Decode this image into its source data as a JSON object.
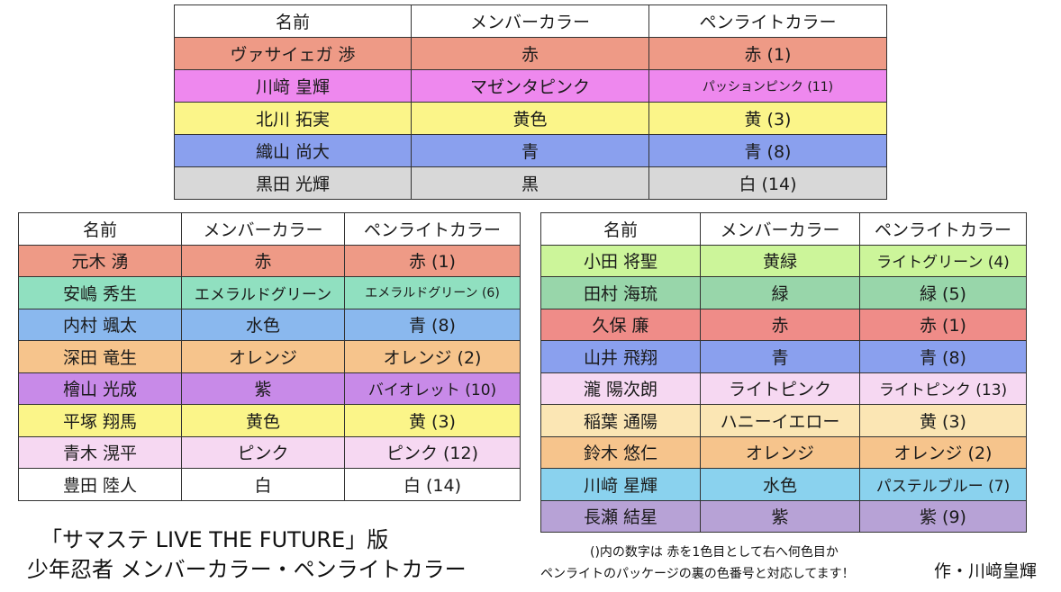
{
  "headers": [
    "名前",
    "メンバーカラー",
    "ペンライトカラー"
  ],
  "colors": {
    "red": "#ee9a86",
    "magenta": "#ee88ee",
    "yellow": "#fbf589",
    "blue": "#8aa0ee",
    "gray": "#d8d8d8",
    "mint": "#90e0c0",
    "lightblue": "#8ab8ee",
    "orange": "#f6c48c",
    "purple": "#c88ae8",
    "pink": "#f6d8f2",
    "white": "#ffffff",
    "lime": "#ccf59a",
    "green": "#98d6aa",
    "red2": "#ef8c88",
    "cream": "#fbe6b4",
    "sky": "#8ad2ee",
    "lavender": "#b7a2d6"
  },
  "table1": [
    {
      "name": "ヴァサイェガ 渉",
      "member": "赤",
      "penlight": "赤 (1)",
      "color": "red"
    },
    {
      "name": "川﨑 皇輝",
      "member": "マゼンタピンク",
      "penlight": "パッションピンク (11)",
      "color": "magenta"
    },
    {
      "name": "北川 拓実",
      "member": "黄色",
      "penlight": "黄 (3)",
      "color": "yellow"
    },
    {
      "name": "織山 尚大",
      "member": "青",
      "penlight": "青 (8)",
      "color": "blue"
    },
    {
      "name": "黒田 光輝",
      "member": "黒",
      "penlight": "白 (14)",
      "color": "gray"
    }
  ],
  "table2": [
    {
      "name": "元木 湧",
      "member": "赤",
      "penlight": "赤 (1)",
      "color": "red"
    },
    {
      "name": "安嶋 秀生",
      "member": "エメラルドグリーン",
      "penlight": "エメラルドグリーン (6)",
      "color": "mint"
    },
    {
      "name": "内村 颯太",
      "member": "水色",
      "penlight": "青 (8)",
      "color": "lightblue"
    },
    {
      "name": "深田 竜生",
      "member": "オレンジ",
      "penlight": "オレンジ (2)",
      "color": "orange"
    },
    {
      "name": "檜山 光成",
      "member": "紫",
      "penlight": "バイオレット (10)",
      "color": "purple"
    },
    {
      "name": "平塚 翔馬",
      "member": "黄色",
      "penlight": "黄 (3)",
      "color": "yellow"
    },
    {
      "name": "青木 滉平",
      "member": "ピンク",
      "penlight": "ピンク (12)",
      "color": "pink"
    },
    {
      "name": "豊田 陸人",
      "member": "白",
      "penlight": "白 (14)",
      "color": "white"
    }
  ],
  "table3": [
    {
      "name": "小田 将聖",
      "member": "黄緑",
      "penlight": "ライトグリーン (4)",
      "color": "lime"
    },
    {
      "name": "田村 海琉",
      "member": "緑",
      "penlight": "緑 (5)",
      "color": "green"
    },
    {
      "name": "久保 廉",
      "member": "赤",
      "penlight": "赤 (1)",
      "color": "red2"
    },
    {
      "name": "山井 飛翔",
      "member": "青",
      "penlight": "青 (8)",
      "color": "blue"
    },
    {
      "name": "瀧 陽次朗",
      "member": "ライトピンク",
      "penlight": "ライトピンク (13)",
      "color": "pink"
    },
    {
      "name": "稲葉 通陽",
      "member": "ハニーイエロー",
      "penlight": "黄 (3)",
      "color": "cream"
    },
    {
      "name": "鈴木 悠仁",
      "member": "オレンジ",
      "penlight": "オレンジ (2)",
      "color": "orange"
    },
    {
      "name": "川﨑 星輝",
      "member": "水色",
      "penlight": "パステルブルー (7)",
      "color": "sky"
    },
    {
      "name": "長瀬 結星",
      "member": "紫",
      "penlight": "紫 (9)",
      "color": "lavender"
    }
  ],
  "caption": {
    "line1": "「サマステ LIVE THE FUTURE」版",
    "line2": "少年忍者 メンバーカラー・ペンライトカラー"
  },
  "note": {
    "line1": "()内の数字は 赤を1色目として右へ何色目か",
    "line2": "ペンライトのパッケージの裏の色番号と対応してます！"
  },
  "credit": "作・川﨑皇輝"
}
